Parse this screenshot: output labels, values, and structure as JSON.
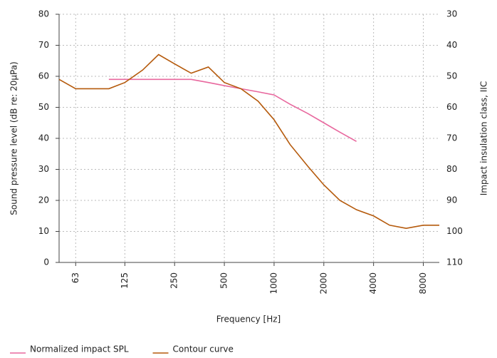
{
  "chart_data": {
    "type": "line",
    "xlabel": "Frequency [Hz]",
    "ylabel": "Sound pressure level (dB re: 20µPa)",
    "y2label": "Impact insulation class, IIC",
    "xscale": "log",
    "xlim": [
      50,
      10000
    ],
    "xticks": [
      63,
      125,
      250,
      500,
      1000,
      2000,
      4000,
      8000
    ],
    "ylim": [
      0,
      80
    ],
    "yticks": [
      0,
      10,
      20,
      30,
      40,
      50,
      60,
      70,
      80
    ],
    "y2lim": [
      110,
      30
    ],
    "y2ticks": [
      30,
      40,
      50,
      60,
      70,
      80,
      90,
      100,
      110
    ],
    "grid": true,
    "legend": "bottom-left",
    "series": [
      {
        "name": "Normalized impact SPL",
        "color": "#e8689e",
        "x": [
          100,
          125,
          160,
          200,
          250,
          315,
          400,
          500,
          630,
          800,
          1000,
          1250,
          1600,
          2000,
          2500,
          3150
        ],
        "values": [
          59,
          59,
          59,
          59,
          59,
          59,
          58,
          57,
          56,
          55,
          54,
          51,
          48,
          45,
          42,
          39
        ]
      },
      {
        "name": "Contour curve",
        "color": "#b55a0c",
        "x": [
          50,
          63,
          80,
          100,
          125,
          160,
          200,
          250,
          315,
          400,
          500,
          630,
          800,
          1000,
          1250,
          1600,
          2000,
          2500,
          3150,
          4000,
          5000,
          6300,
          8000,
          10000
        ],
        "values": [
          59,
          56,
          56,
          56,
          58,
          62,
          67,
          64,
          61,
          63,
          58,
          56,
          52,
          46,
          38,
          31,
          25,
          20,
          17,
          15,
          12,
          11,
          12,
          12
        ]
      }
    ]
  }
}
